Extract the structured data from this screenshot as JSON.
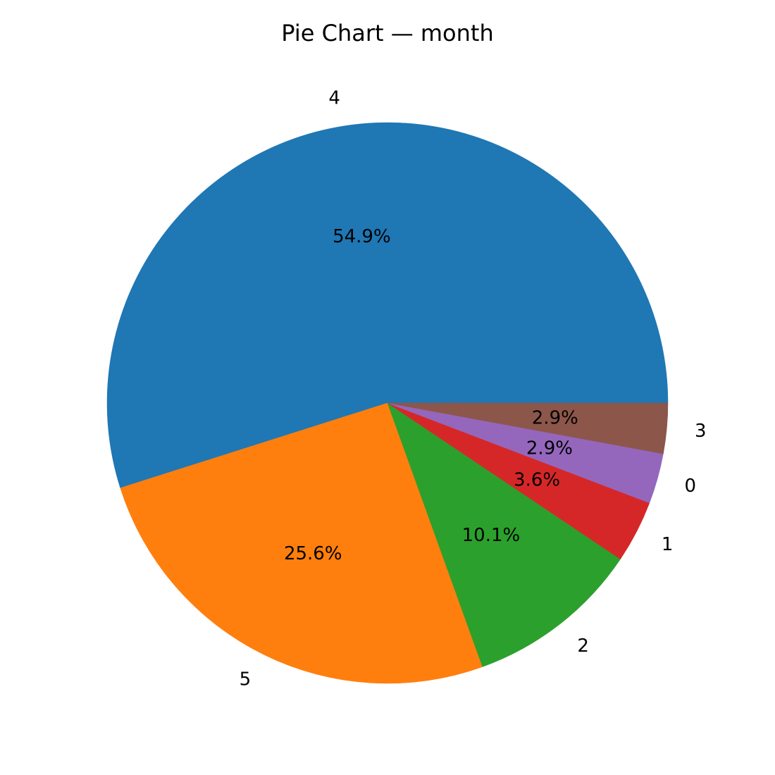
{
  "chart_data": {
    "type": "pie",
    "title": "Pie Chart — month",
    "start_angle_deg": 0,
    "direction": "counterclockwise",
    "slices": [
      {
        "label": "4",
        "value": 54.9,
        "pct_label": "54.9%",
        "color": "#1f77b4"
      },
      {
        "label": "5",
        "value": 25.6,
        "pct_label": "25.6%",
        "color": "#ff7f0e"
      },
      {
        "label": "2",
        "value": 10.1,
        "pct_label": "10.1%",
        "color": "#2ca02c"
      },
      {
        "label": "1",
        "value": 3.6,
        "pct_label": "3.6%",
        "color": "#d62728"
      },
      {
        "label": "0",
        "value": 2.9,
        "pct_label": "2.9%",
        "color": "#9467bd"
      },
      {
        "label": "3",
        "value": 2.9,
        "pct_label": "2.9%",
        "color": "#8c564b"
      }
    ]
  }
}
